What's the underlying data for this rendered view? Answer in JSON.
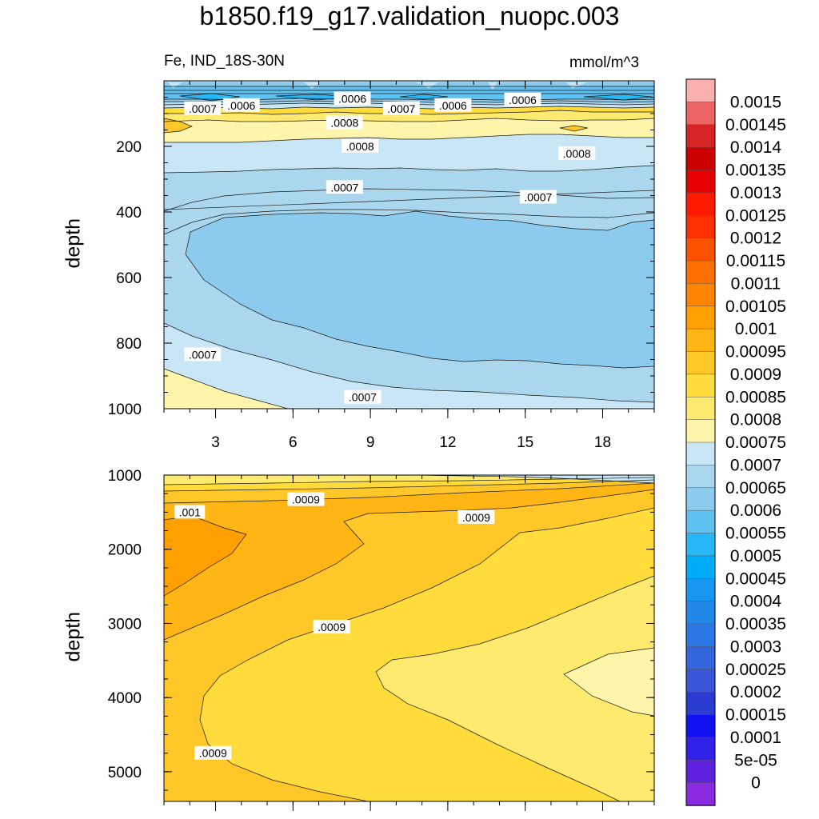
{
  "chart_data": [
    {
      "type": "heatmap",
      "panel": "upper",
      "title": "b1850.f19_g17.validation_nuopc.003",
      "left_label": "Fe, IND_18S-30N",
      "right_label": "mmol/m^3",
      "xlabel": "",
      "ylabel": "depth",
      "xlim": [
        1,
        20
      ],
      "ylim": [
        1000,
        0
      ],
      "x_ticks": [
        3,
        6,
        9,
        12,
        15,
        18
      ],
      "x_tick_labels": [
        "3",
        "6",
        "9",
        "12",
        "15",
        "18"
      ],
      "y_ticks": [
        200,
        400,
        600,
        800,
        1000
      ],
      "y_tick_labels": [
        "200",
        "400",
        "600",
        "800",
        "1000"
      ],
      "contour_labels": [
        {
          "text": ".0006",
          "x": 8.3,
          "y": 55
        },
        {
          "text": ".0006",
          "x": 4.0,
          "y": 75
        },
        {
          "text": ".0007",
          "x": 2.5,
          "y": 85
        },
        {
          "text": ".0007",
          "x": 10.2,
          "y": 85
        },
        {
          "text": ".0006",
          "x": 12.2,
          "y": 75
        },
        {
          "text": ".0006",
          "x": 14.9,
          "y": 58
        },
        {
          "text": ".0008",
          "x": 8.0,
          "y": 128
        },
        {
          "text": ".0008",
          "x": 8.6,
          "y": 200
        },
        {
          "text": ".0008",
          "x": 17.0,
          "y": 222
        },
        {
          "text": ".0007",
          "x": 8.0,
          "y": 325
        },
        {
          "text": ".0007",
          "x": 15.5,
          "y": 355
        },
        {
          "text": ".0007",
          "x": 2.5,
          "y": 835
        },
        {
          "text": ".0007",
          "x": 8.7,
          "y": 965
        }
      ]
    },
    {
      "type": "heatmap",
      "panel": "lower",
      "xlabel": "",
      "ylabel": "depth",
      "xlim": [
        1,
        20
      ],
      "ylim": [
        5400,
        1000
      ],
      "x_ticks": [
        3,
        6,
        9,
        12,
        15,
        18
      ],
      "y_ticks": [
        1000,
        2000,
        3000,
        4000,
        5000
      ],
      "y_tick_labels": [
        "1000",
        "2000",
        "3000",
        "4000",
        "5000"
      ],
      "contour_labels": [
        {
          "text": ".001",
          "x": 2.0,
          "y": 1500
        },
        {
          "text": ".0009",
          "x": 6.5,
          "y": 1330
        },
        {
          "text": ".0009",
          "x": 13.1,
          "y": 1570
        },
        {
          "text": ".0009",
          "x": 7.5,
          "y": 3050
        },
        {
          "text": ".0009",
          "x": 2.9,
          "y": 4750
        }
      ]
    }
  ],
  "colorbar": {
    "labels": [
      "0.0015",
      "0.00145",
      "0.0014",
      "0.00135",
      "0.0013",
      "0.00125",
      "0.0012",
      "0.00115",
      "0.0011",
      "0.00105",
      "0.001",
      "0.00095",
      "0.0009",
      "0.00085",
      "0.0008",
      "0.00075",
      "0.0007",
      "0.00065",
      "0.0006",
      "0.00055",
      "0.0005",
      "0.00045",
      "0.0004",
      "0.00035",
      "0.0003",
      "0.00025",
      "0.0002",
      "0.00015",
      "0.0001",
      "5e-05",
      "0"
    ],
    "colors": [
      "#fbb0b0",
      "#eb6464",
      "#d42424",
      "#cc0000",
      "#e60000",
      "#ff1a00",
      "#ff3000",
      "#ff5200",
      "#ff6e00",
      "#ff8500",
      "#ffa000",
      "#ffb614",
      "#ffc828",
      "#ffdc3c",
      "#ffea70",
      "#fff5aa",
      "#c8e6f5",
      "#aad6ee",
      "#8ccaee",
      "#5ec1f0",
      "#28b8f8",
      "#00acf8",
      "#1896f0",
      "#2288e8",
      "#2b78e4",
      "#3366dd",
      "#3a56d6",
      "#2a3bd0",
      "#1010f0",
      "#3020e8",
      "#6020e0",
      "#8a2be2"
    ]
  },
  "colors": {
    "fe_0.0005": "#28b8f8",
    "fe_0.00055": "#5ec1f0",
    "fe_0.0006": "#8ccaee",
    "fe_0.00065": "#aad6ee",
    "fe_0.0007": "#c8e6f5",
    "fe_0.00075": "#fff5aa",
    "fe_0.0008": "#ffea70",
    "fe_0.00085": "#ffdc3c",
    "fe_0.0009": "#ffc828",
    "fe_0.00095": "#ffb614",
    "fe_0.001": "#ffa000"
  }
}
